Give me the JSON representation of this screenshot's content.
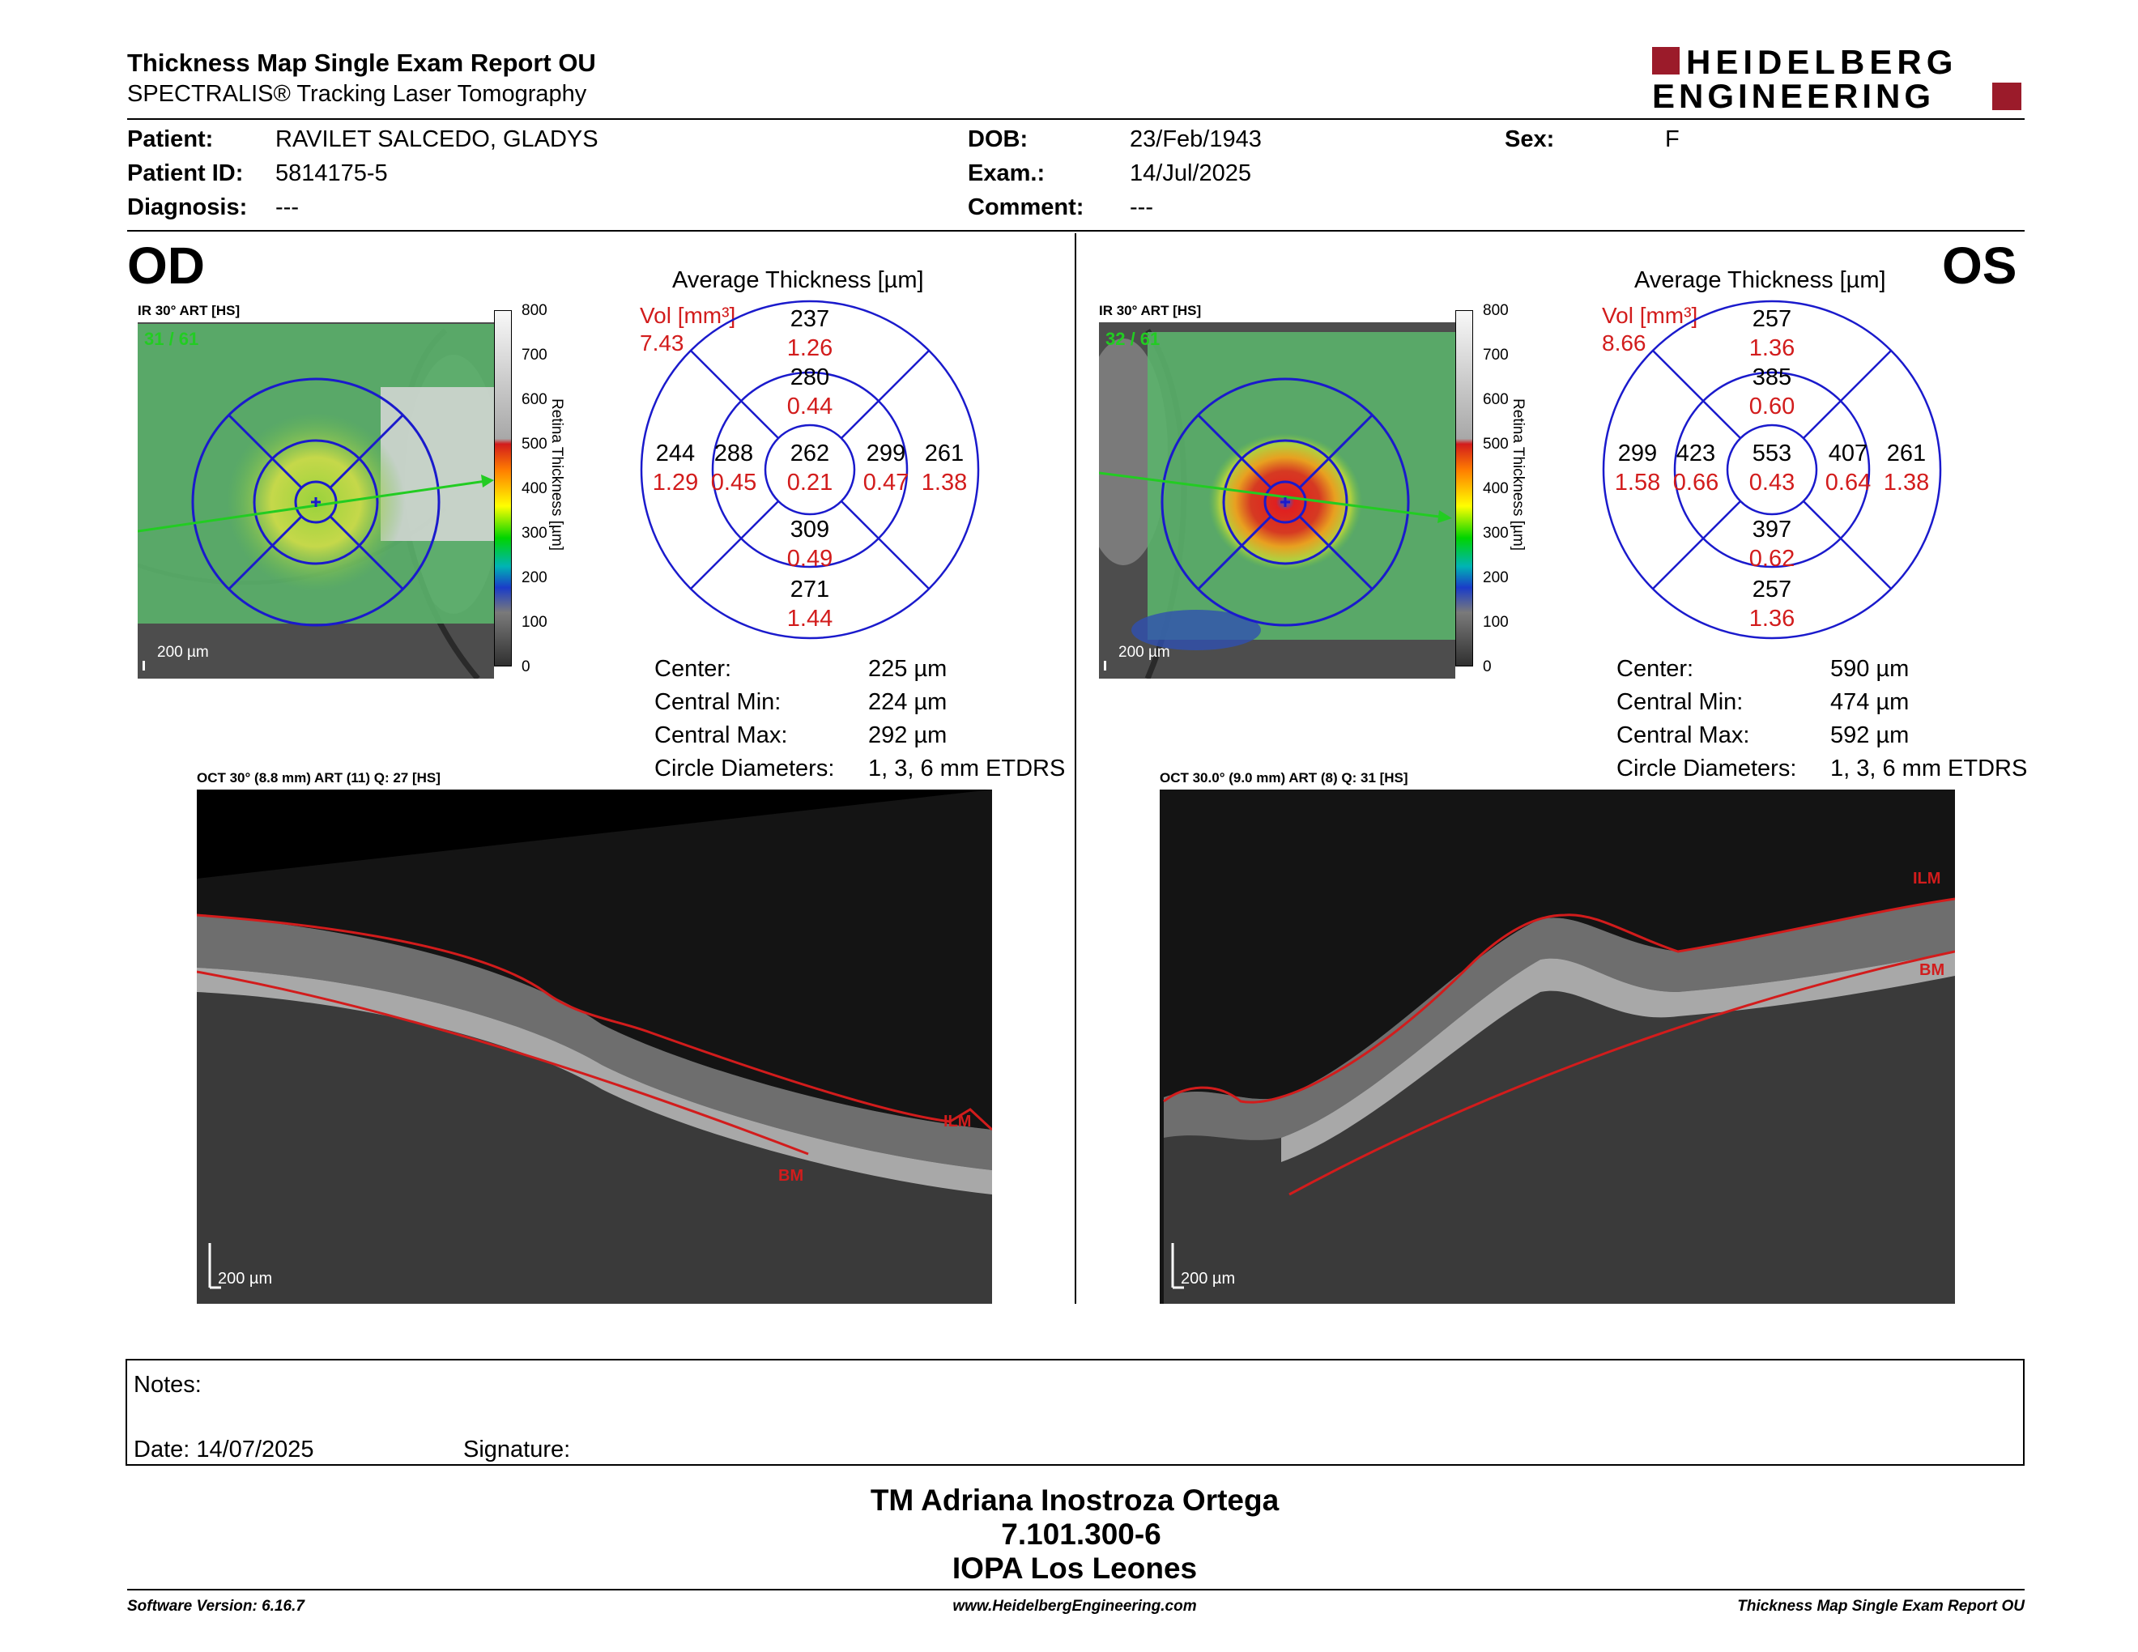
{
  "report": {
    "title": "Thickness Map Single Exam Report OU",
    "subtitle": "SPECTRALIS® Tracking Laser Tomography",
    "logo_line1": "HEIDELBERG",
    "logo_line2": "ENGINEERING"
  },
  "patient": {
    "patient_label": "Patient:",
    "patient_value": "RAVILET SALCEDO, GLADYS",
    "id_label": "Patient ID:",
    "id_value": "5814175-5",
    "diagnosis_label": "Diagnosis:",
    "diagnosis_value": "---",
    "dob_label": "DOB:",
    "dob_value": "23/Feb/1943",
    "exam_label": "Exam.:",
    "exam_value": "14/Jul/2025",
    "comment_label": "Comment:",
    "comment_value": "---",
    "sex_label": "Sex:",
    "sex_value": "F"
  },
  "colorbar": {
    "ticks": [
      "800",
      "700",
      "600",
      "500",
      "400",
      "300",
      "200",
      "100",
      "0"
    ],
    "title": "Retina Thickness [µm]"
  },
  "od": {
    "eye": "OD",
    "ir_label": "IR 30° ART [HS]",
    "frames": "31 / 61",
    "scale": "200 µm",
    "chart_title": "Average Thickness [µm]",
    "vol_label": "Vol [mm³]",
    "vol_value": "7.43",
    "center": {
      "t": "262",
      "v": "0.21"
    },
    "inner_top": {
      "t": "280",
      "v": "0.44"
    },
    "inner_bottom": {
      "t": "309",
      "v": "0.49"
    },
    "inner_left": {
      "t": "288",
      "v": "0.45"
    },
    "inner_right": {
      "t": "299",
      "v": "0.47"
    },
    "outer_top": {
      "t": "237",
      "v": "1.26"
    },
    "outer_bottom": {
      "t": "271",
      "v": "1.44"
    },
    "outer_left": {
      "t": "244",
      "v": "1.29"
    },
    "outer_right": {
      "t": "261",
      "v": "1.38"
    },
    "stats": [
      {
        "label": "Center:",
        "value": "225 µm"
      },
      {
        "label": "Central Min:",
        "value": "224 µm"
      },
      {
        "label": "Central Max:",
        "value": "292 µm"
      },
      {
        "label": "Circle Diameters:",
        "value": "1, 3, 6 mm ETDRS"
      }
    ],
    "oct_label": "OCT 30° (8.8 mm) ART (11) Q: 27 [HS]",
    "oct_scale": "200 µm",
    "ilm": "ILM",
    "bm": "BM"
  },
  "os": {
    "eye": "OS",
    "ir_label": "IR 30° ART [HS]",
    "frames": "32 / 61",
    "scale": "200 µm",
    "chart_title": "Average Thickness [µm]",
    "vol_label": "Vol [mm³]",
    "vol_value": "8.66",
    "center": {
      "t": "553",
      "v": "0.43"
    },
    "inner_top": {
      "t": "385",
      "v": "0.60"
    },
    "inner_bottom": {
      "t": "397",
      "v": "0.62"
    },
    "inner_left": {
      "t": "423",
      "v": "0.66"
    },
    "inner_right": {
      "t": "407",
      "v": "0.64"
    },
    "outer_top": {
      "t": "257",
      "v": "1.36"
    },
    "outer_bottom": {
      "t": "257",
      "v": "1.36"
    },
    "outer_left": {
      "t": "299",
      "v": "1.58"
    },
    "outer_right": {
      "t": "261",
      "v": "1.38"
    },
    "stats": [
      {
        "label": "Center:",
        "value": "590 µm"
      },
      {
        "label": "Central Min:",
        "value": "474 µm"
      },
      {
        "label": "Central Max:",
        "value": "592 µm"
      },
      {
        "label": "Circle Diameters:",
        "value": "1, 3, 6 mm ETDRS"
      }
    ],
    "oct_label": "OCT 30.0° (9.0 mm) ART (8) Q: 31 [HS]",
    "oct_scale": "200 µm",
    "ilm": "ILM",
    "bm": "BM"
  },
  "notes": {
    "notes_label": "Notes:",
    "date_label": "Date: 14/07/2025",
    "signature_label": "Signature:"
  },
  "signoff": {
    "name": "TM Adriana Inostroza Ortega",
    "rut": "7.101.300-6",
    "place": "IOPA Los Leones"
  },
  "footer": {
    "software": "Software Version: 6.16.7",
    "url": "www.HeidelbergEngineering.com",
    "report": "Thickness Map Single Exam Report OU"
  },
  "colors": {
    "red": "#d21c1c",
    "grid_blue": "#1a1acc",
    "logo_red": "#9b1b2a",
    "green_line": "#22cc22"
  }
}
